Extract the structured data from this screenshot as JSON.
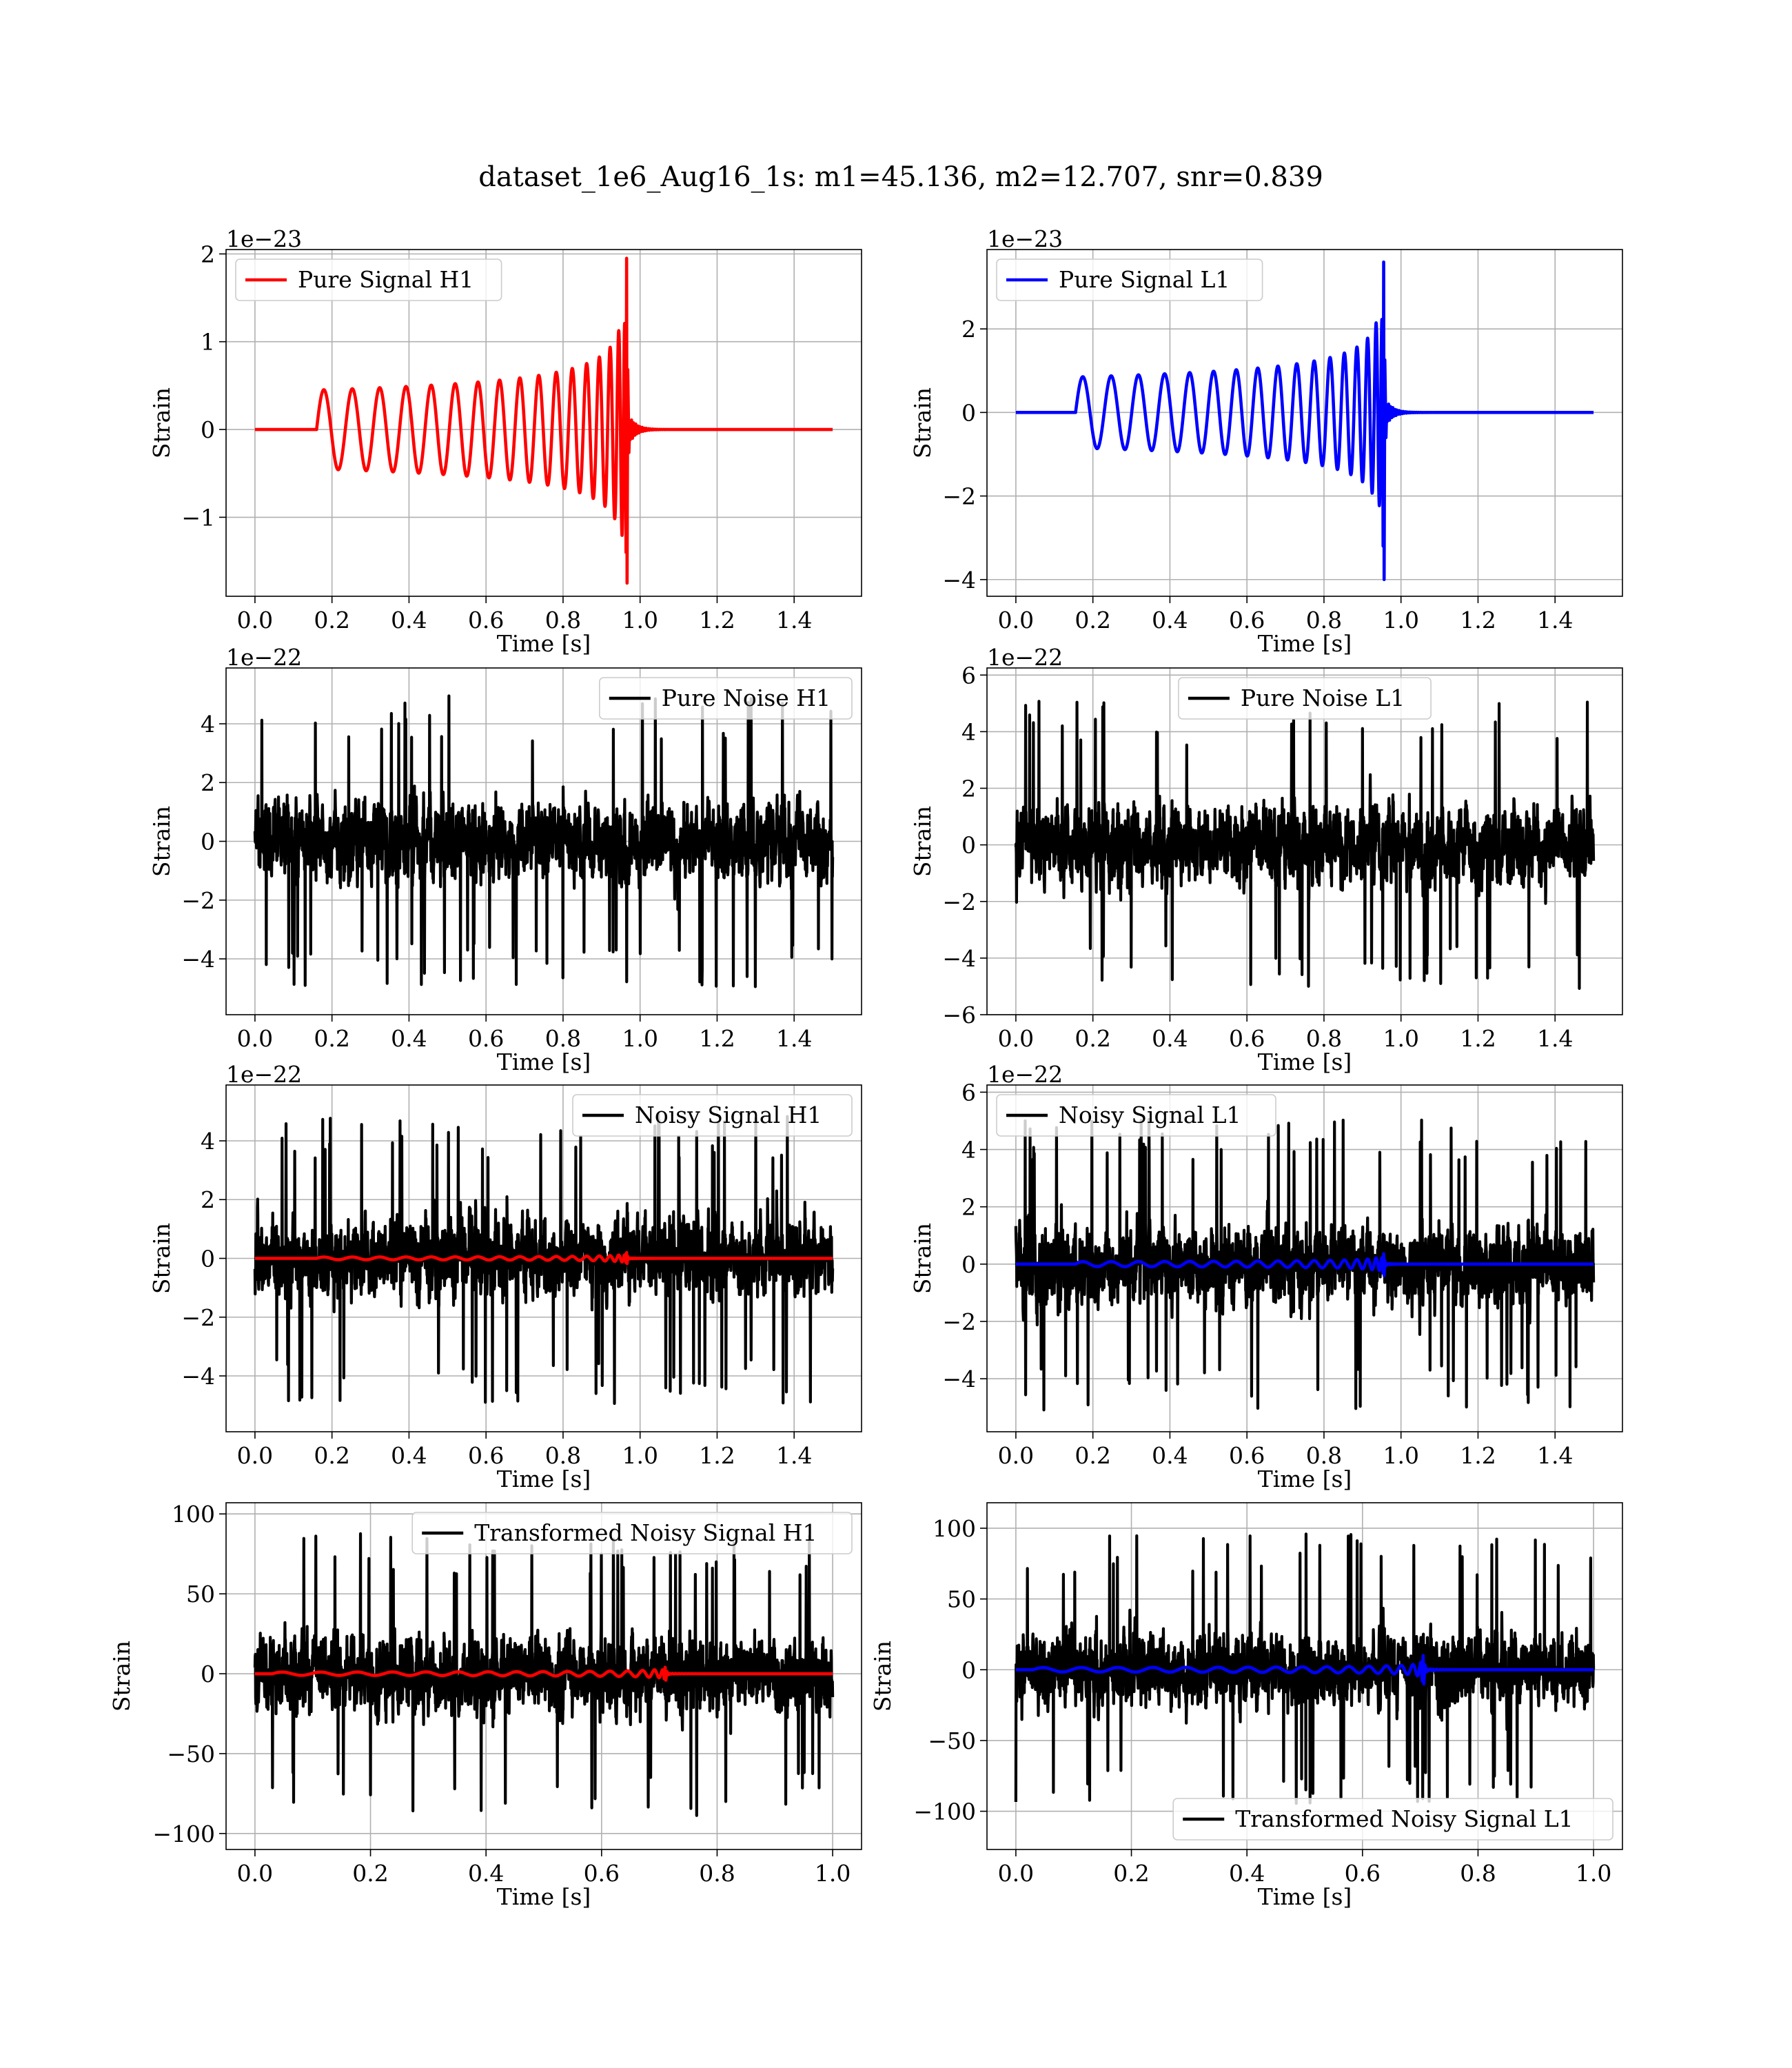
{
  "figure": {
    "title": "dataset_1e6_Aug16_1s: m1=45.136, m2=12.707, snr=0.839"
  },
  "colors": {
    "h1_signal": "#ff0000",
    "l1_signal": "#0000ff",
    "noise": "#000000",
    "grid": "#b0b0b0",
    "frame": "#000000"
  },
  "chart_data": [
    {
      "type": "line",
      "title": "",
      "xlabel": "Time [s]",
      "ylabel": "Strain",
      "offset_text": "1e−23",
      "xlim": [
        -0.075,
        1.575
      ],
      "ylim": [
        -1.9,
        2.05
      ],
      "x_ticks": [
        0.0,
        0.2,
        0.4,
        0.6,
        0.8,
        1.0,
        1.2,
        1.4
      ],
      "x_tick_labels": [
        "0.0",
        "0.2",
        "0.4",
        "0.6",
        "0.8",
        "1.0",
        "1.2",
        "1.4"
      ],
      "y_ticks": [
        -1,
        0,
        1,
        2
      ],
      "y_tick_labels": [
        "−1",
        "0",
        "1",
        "2"
      ],
      "grid": true,
      "legend_position": "upper-left",
      "series": [
        {
          "name": "Pure Signal H1",
          "kind": "chirp",
          "color": "#ff0000",
          "x_start": 0.0,
          "x_end": 1.5,
          "onset": 0.16,
          "merger": 0.965,
          "amplitude": 0.45,
          "peak": 1.95,
          "trough": -1.75,
          "baseline": 0
        }
      ]
    },
    {
      "type": "line",
      "title": "",
      "xlabel": "Time [s]",
      "ylabel": "Strain",
      "offset_text": "1e−23",
      "xlim": [
        -0.075,
        1.575
      ],
      "ylim": [
        -4.4,
        3.9
      ],
      "x_ticks": [
        0.0,
        0.2,
        0.4,
        0.6,
        0.8,
        1.0,
        1.2,
        1.4
      ],
      "x_tick_labels": [
        "0.0",
        "0.2",
        "0.4",
        "0.6",
        "0.8",
        "1.0",
        "1.2",
        "1.4"
      ],
      "y_ticks": [
        -4,
        -2,
        0,
        2
      ],
      "y_tick_labels": [
        "−4",
        "−2",
        "0",
        "2"
      ],
      "grid": true,
      "legend_position": "upper-left",
      "series": [
        {
          "name": "Pure Signal L1",
          "kind": "chirp",
          "color": "#0000ff",
          "x_start": 0.0,
          "x_end": 1.5,
          "onset": 0.155,
          "merger": 0.955,
          "amplitude": 0.85,
          "peak": 3.6,
          "trough": -4.0,
          "baseline": 0
        }
      ]
    },
    {
      "type": "line",
      "title": "",
      "xlabel": "Time [s]",
      "ylabel": "Strain",
      "offset_text": "1e−22",
      "xlim": [
        -0.075,
        1.575
      ],
      "ylim": [
        -5.9,
        5.9
      ],
      "x_ticks": [
        0.0,
        0.2,
        0.4,
        0.6,
        0.8,
        1.0,
        1.2,
        1.4
      ],
      "x_tick_labels": [
        "0.0",
        "0.2",
        "0.4",
        "0.6",
        "0.8",
        "1.0",
        "1.2",
        "1.4"
      ],
      "y_ticks": [
        -4,
        -2,
        0,
        2,
        4
      ],
      "y_tick_labels": [
        "−4",
        "−2",
        "0",
        "2",
        "4"
      ],
      "grid": true,
      "legend_position": "upper-right",
      "series": [
        {
          "name": "Pure Noise H1",
          "kind": "noise",
          "color": "#000000",
          "x_start": 0.0,
          "x_end": 1.5,
          "amplitude": 1.55,
          "max": 5.5,
          "min": -5.3,
          "baseline": 0
        }
      ]
    },
    {
      "type": "line",
      "title": "",
      "xlabel": "Time [s]",
      "ylabel": "Strain",
      "offset_text": "1e−22",
      "xlim": [
        -0.075,
        1.575
      ],
      "ylim": [
        -6.0,
        6.25
      ],
      "x_ticks": [
        0.0,
        0.2,
        0.4,
        0.6,
        0.8,
        1.0,
        1.2,
        1.4
      ],
      "x_tick_labels": [
        "0.0",
        "0.2",
        "0.4",
        "0.6",
        "0.8",
        "1.0",
        "1.2",
        "1.4"
      ],
      "y_ticks": [
        -6,
        -4,
        -2,
        0,
        2,
        4,
        6
      ],
      "y_tick_labels": [
        "−6",
        "−4",
        "−2",
        "0",
        "2",
        "4",
        "6"
      ],
      "grid": true,
      "legend_position": "upper-center",
      "series": [
        {
          "name": "Pure Noise L1",
          "kind": "noise",
          "color": "#000000",
          "x_start": 0.0,
          "x_end": 1.5,
          "amplitude": 1.6,
          "max": 6.0,
          "min": -5.5,
          "baseline": 0
        }
      ]
    },
    {
      "type": "line",
      "title": "",
      "xlabel": "Time [s]",
      "ylabel": "Strain",
      "offset_text": "1e−22",
      "xlim": [
        -0.075,
        1.575
      ],
      "ylim": [
        -5.9,
        5.9
      ],
      "x_ticks": [
        0.0,
        0.2,
        0.4,
        0.6,
        0.8,
        1.0,
        1.2,
        1.4
      ],
      "x_tick_labels": [
        "0.0",
        "0.2",
        "0.4",
        "0.6",
        "0.8",
        "1.0",
        "1.2",
        "1.4"
      ],
      "y_ticks": [
        -4,
        -2,
        0,
        2,
        4
      ],
      "y_tick_labels": [
        "−4",
        "−2",
        "0",
        "2",
        "4"
      ],
      "grid": true,
      "legend_position": "upper-right",
      "series": [
        {
          "name": "Noisy Signal H1",
          "kind": "noise",
          "color": "#000000",
          "x_start": 0.0,
          "x_end": 1.5,
          "amplitude": 1.55,
          "max": 5.2,
          "min": -5.5,
          "baseline": 0
        },
        {
          "kind": "chirp",
          "color": "#ff0000",
          "x_start": 0.0,
          "x_end": 1.5,
          "onset": 0.16,
          "merger": 0.965,
          "amplitude": 0.045,
          "peak": 0.195,
          "trough": -0.175,
          "baseline": 0
        }
      ]
    },
    {
      "type": "line",
      "title": "",
      "xlabel": "Time [s]",
      "ylabel": "Strain",
      "offset_text": "1e−22",
      "xlim": [
        -0.075,
        1.575
      ],
      "ylim": [
        -5.85,
        6.25
      ],
      "x_ticks": [
        0.0,
        0.2,
        0.4,
        0.6,
        0.8,
        1.0,
        1.2,
        1.4
      ],
      "x_tick_labels": [
        "0.0",
        "0.2",
        "0.4",
        "0.6",
        "0.8",
        "1.0",
        "1.2",
        "1.4"
      ],
      "y_ticks": [
        -4,
        -2,
        0,
        2,
        4,
        6
      ],
      "y_tick_labels": [
        "−4",
        "−2",
        "0",
        "2",
        "4",
        "6"
      ],
      "grid": true,
      "legend_position": "upper-left",
      "series": [
        {
          "name": "Noisy Signal L1",
          "kind": "noise",
          "color": "#000000",
          "x_start": 0.0,
          "x_end": 1.5,
          "amplitude": 1.6,
          "max": 6.0,
          "min": -5.4,
          "baseline": 0
        },
        {
          "kind": "chirp",
          "color": "#0000ff",
          "x_start": 0.0,
          "x_end": 1.5,
          "onset": 0.155,
          "merger": 0.955,
          "amplitude": 0.085,
          "peak": 0.36,
          "trough": -0.4,
          "baseline": 0
        }
      ]
    },
    {
      "type": "line",
      "title": "",
      "xlabel": "Time [s]",
      "ylabel": "Strain",
      "offset_text": "",
      "xlim": [
        -0.05,
        1.05
      ],
      "ylim": [
        -110,
        107
      ],
      "x_ticks": [
        0.0,
        0.2,
        0.4,
        0.6,
        0.8,
        1.0
      ],
      "x_tick_labels": [
        "0.0",
        "0.2",
        "0.4",
        "0.6",
        "0.8",
        "1.0"
      ],
      "y_ticks": [
        -100,
        -50,
        0,
        50,
        100
      ],
      "y_tick_labels": [
        "−100",
        "−50",
        "0",
        "50",
        "100"
      ],
      "grid": true,
      "legend_position": "upper-right",
      "series": [
        {
          "name": "Transformed Noisy Signal H1",
          "kind": "noise",
          "color": "#000000",
          "x_start": 0.0,
          "x_end": 1.0,
          "amplitude": 28,
          "max": 100,
          "min": -100,
          "baseline": 0
        },
        {
          "kind": "chirp",
          "color": "#ff0000",
          "x_start": 0.0,
          "x_end": 1.0,
          "onset": 0.03,
          "merger": 0.71,
          "amplitude": 1.0,
          "peak": 4,
          "trough": -4,
          "baseline": 0
        }
      ]
    },
    {
      "type": "line",
      "title": "",
      "xlabel": "Time [s]",
      "ylabel": "Strain",
      "offset_text": "",
      "xlim": [
        -0.05,
        1.05
      ],
      "ylim": [
        -127,
        118
      ],
      "x_ticks": [
        0.0,
        0.2,
        0.4,
        0.6,
        0.8,
        1.0
      ],
      "x_tick_labels": [
        "0.0",
        "0.2",
        "0.4",
        "0.6",
        "0.8",
        "1.0"
      ],
      "y_ticks": [
        -100,
        -50,
        0,
        50,
        100
      ],
      "y_tick_labels": [
        "−100",
        "−50",
        "0",
        "50",
        "100"
      ],
      "grid": true,
      "legend_position": "lower-right",
      "series": [
        {
          "name": "Transformed Noisy Signal L1",
          "kind": "noise",
          "color": "#000000",
          "x_start": 0.0,
          "x_end": 1.0,
          "amplitude": 30,
          "max": 110,
          "min": -115,
          "baseline": 0
        },
        {
          "kind": "chirp",
          "color": "#0000ff",
          "x_start": 0.0,
          "x_end": 1.0,
          "onset": 0.03,
          "merger": 0.705,
          "amplitude": 1.5,
          "peak": 10,
          "trough": -10,
          "baseline": 0
        }
      ]
    }
  ]
}
